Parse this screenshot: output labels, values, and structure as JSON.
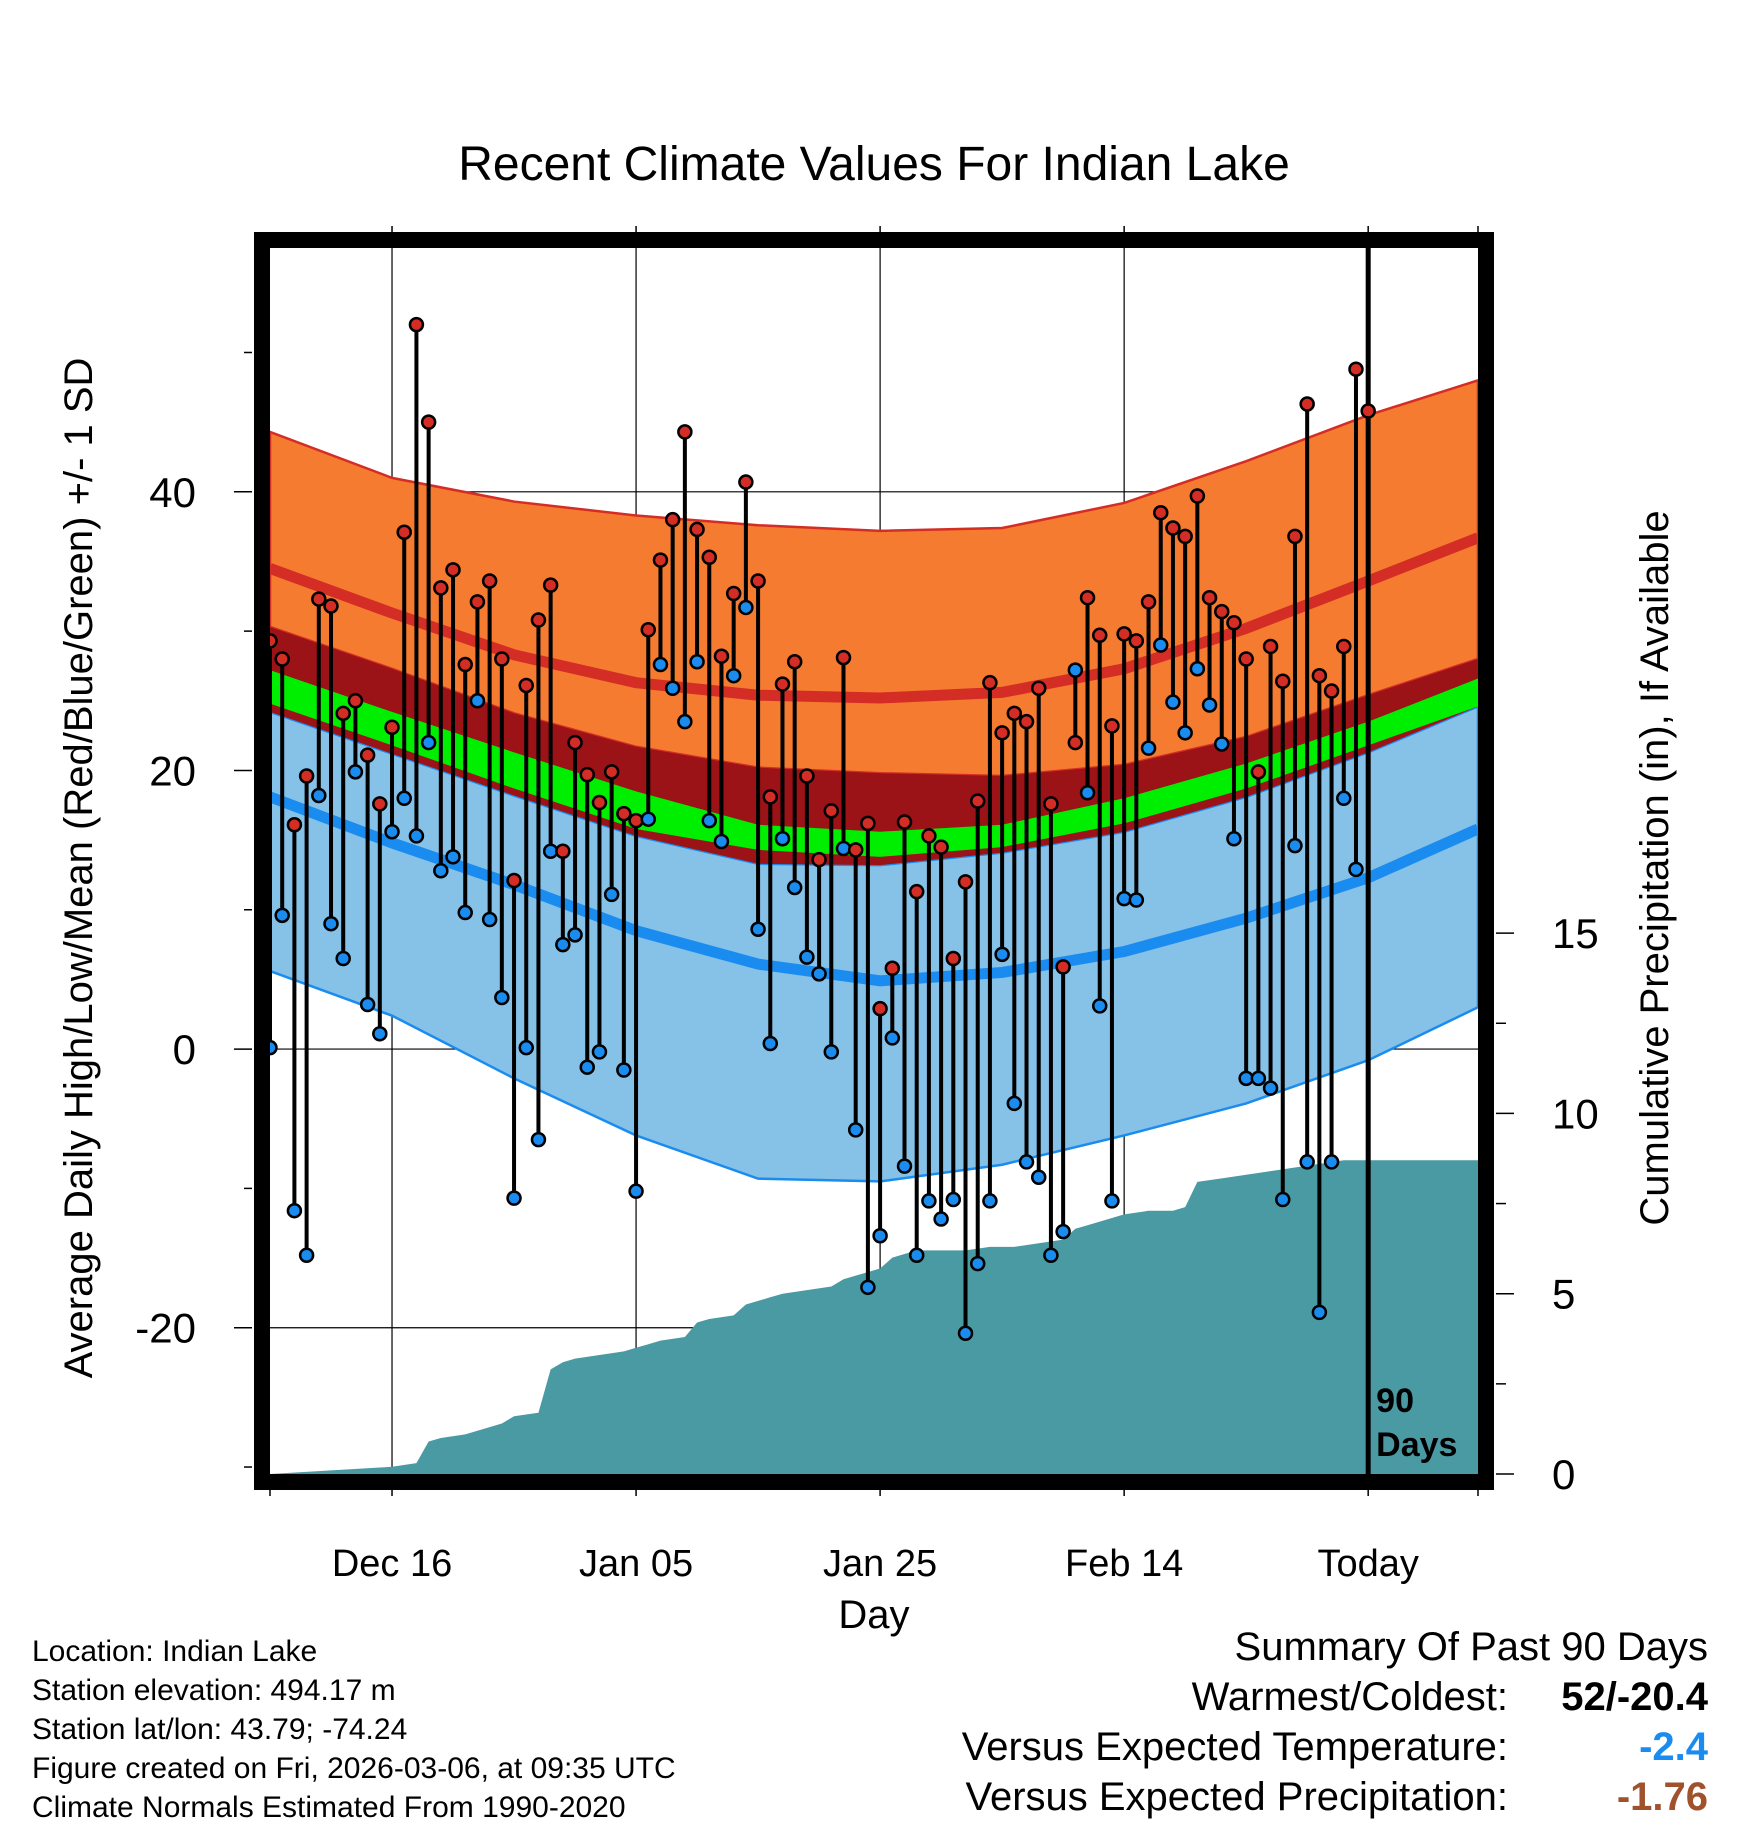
{
  "title": "Recent Climate Values For Indian Lake",
  "colors": {
    "high_band": "#f47b30",
    "high_line": "#d42d25",
    "mean_band": "#9b1217",
    "mean_line": "#00ee00",
    "low_band": "#86c1e7",
    "low_line": "#1a8cf0",
    "precip": "#4a9aa3",
    "high_dot": "#d42d25",
    "low_dot": "#1a8cf0",
    "summary_temp": "#1a8cf0",
    "summary_precip": "#a0522d"
  },
  "chart_data": {
    "type": "line",
    "title": "Recent Climate Values For Indian Lake",
    "xlabel": "Day",
    "ylabel": "Average Daily High/Low/Mean (Red/Blue/Green) +/- 1 SD",
    "y2label": "Cumulative Precipitation (in), If Available",
    "xlim": [
      -90,
      9
    ],
    "ylim": [
      -30.5,
      57.5
    ],
    "y2lim": [
      0,
      34
    ],
    "x_ticks": [
      {
        "x": -80,
        "label": "Dec 16"
      },
      {
        "x": -60,
        "label": "Jan 05"
      },
      {
        "x": -40,
        "label": "Jan 25"
      },
      {
        "x": -20,
        "label": "Feb 14"
      },
      {
        "x": 0,
        "label": "Today"
      }
    ],
    "y_ticks": [
      -20,
      0,
      20,
      40
    ],
    "y2_ticks": [
      0,
      5,
      10,
      15
    ],
    "today_marker": {
      "x": 0,
      "label_line1": "90",
      "label_line2": "Days"
    },
    "normals": {
      "x": [
        -90,
        -80,
        -70,
        -60,
        -50,
        -40,
        -30,
        -20,
        -10,
        0,
        9
      ],
      "high_upper": [
        44.3,
        41,
        39.3,
        38.3,
        37.6,
        37.2,
        37.4,
        39.2,
        42.2,
        45.5,
        48
      ],
      "high_mean": [
        34.5,
        31.3,
        28.3,
        26.3,
        25.4,
        25.2,
        25.6,
        27.3,
        30.2,
        33.6,
        36.7
      ],
      "high_lower": [
        30.3,
        27.3,
        24.1,
        21.7,
        20.2,
        19.8,
        19.6,
        20.4,
        22.4,
        25.4,
        28
      ],
      "mean_upper": [
        27.2,
        24.2,
        21.3,
        18.5,
        16.1,
        15.6,
        16.1,
        18,
        20.5,
        23.5,
        26.6
      ],
      "mean_mean": [
        26,
        23,
        20,
        17,
        15.3,
        14.8,
        15.3,
        17.1,
        19.6,
        22.7,
        25.7
      ],
      "mean_lower": [
        24.8,
        21.8,
        18.7,
        15.8,
        14.3,
        13.8,
        14.5,
        16.2,
        18.7,
        21.8,
        24.6
      ],
      "low_upper": [
        24.2,
        21.2,
        18.2,
        15.3,
        13.3,
        13.2,
        14.1,
        15.6,
        18.1,
        21.3,
        24.6
      ],
      "low_mean": [
        18.1,
        14.8,
        11.8,
        8.5,
        6.1,
        4.9,
        5.5,
        7,
        9.4,
        12.3,
        15.8
      ],
      "low_lower": [
        5.6,
        2.4,
        -2.1,
        -6.2,
        -9.3,
        -9.5,
        -8.3,
        -6.2,
        -3.9,
        -0.8,
        3
      ]
    },
    "observed": {
      "highs": [
        29.3,
        28,
        16.1,
        19.6,
        32.3,
        31.8,
        24.1,
        25,
        21.1,
        17.6,
        23.1,
        37.1,
        52,
        45,
        33.1,
        34.4,
        27.6,
        32.1,
        33.6,
        28,
        12.1,
        26.1,
        30.8,
        33.3,
        14.2,
        22,
        19.7,
        17.7,
        19.9,
        16.9,
        16.4,
        30.1,
        35.1,
        38,
        44.3,
        37.3,
        35.3,
        28.2,
        32.7,
        40.7,
        33.6,
        18.1,
        26.2,
        27.8,
        19.6,
        13.6,
        17.1,
        28.1,
        14.3,
        16.2,
        2.9,
        5.8,
        16.3,
        11.3,
        15.3,
        14.5,
        6.5,
        12,
        17.8,
        26.3,
        22.7,
        24.1,
        23.5,
        25.9,
        17.6,
        5.9,
        22,
        32.4,
        29.7,
        23.2,
        29.8,
        29.3,
        32.1,
        38.5,
        37.4,
        36.8,
        39.7,
        32.4,
        31.4,
        30.6,
        28,
        19.9,
        28.9,
        26.4,
        36.8,
        46.3,
        26.8,
        25.7,
        28.9,
        48.8,
        45.8
      ],
      "lows": [
        0.1,
        9.6,
        -11.6,
        -14.8,
        18.2,
        9,
        6.5,
        19.9,
        3.2,
        1.1,
        15.6,
        18,
        15.3,
        22,
        12.8,
        13.8,
        9.8,
        25,
        9.3,
        3.7,
        -10.7,
        0.1,
        -6.5,
        14.2,
        7.5,
        8.2,
        -1.3,
        -0.2,
        11.1,
        -1.5,
        -10.2,
        16.5,
        27.6,
        25.9,
        23.5,
        27.8,
        16.4,
        14.9,
        26.8,
        31.7,
        8.6,
        0.4,
        15.1,
        11.6,
        6.6,
        5.4,
        -0.2,
        14.4,
        -5.8,
        -17.1,
        -13.4,
        0.8,
        -8.4,
        -14.8,
        -10.9,
        -12.2,
        -10.8,
        -20.4,
        -15.4,
        -10.9,
        6.8,
        -3.9,
        -8.1,
        -9.2,
        -14.8,
        -13.1,
        27.2,
        18.4,
        3.1,
        -10.9,
        10.8,
        10.7,
        21.6,
        29,
        24.9,
        22.7,
        27.3,
        24.7,
        21.9,
        15.1,
        -2.1,
        -2.1,
        -2.8,
        -10.8,
        14.6,
        -8.1,
        -18.9,
        -8.1,
        18,
        12.9
      ]
    },
    "precip_cumulative": {
      "x": [
        -90,
        -85,
        -80,
        -78,
        -77,
        -76,
        -74,
        -72,
        -71,
        -70,
        -68,
        -67,
        -66,
        -65,
        -63,
        -61,
        -60,
        -59,
        -58,
        -56,
        -55,
        -54,
        -52,
        -51,
        -50,
        -49,
        -48,
        -46,
        -44,
        -43,
        -42,
        -41,
        -40,
        -39,
        -38,
        -37,
        -35,
        -33,
        -31,
        -29,
        -27,
        -25,
        -24,
        -23,
        -22,
        -20,
        -18,
        -16,
        -15,
        -14,
        -12,
        -10,
        -8,
        -6,
        -4,
        -2,
        0,
        9
      ],
      "values": [
        0,
        0.1,
        0.2,
        0.3,
        0.9,
        1,
        1.1,
        1.3,
        1.4,
        1.6,
        1.7,
        2.9,
        3.1,
        3.2,
        3.3,
        3.4,
        3.5,
        3.6,
        3.7,
        3.8,
        4.2,
        4.3,
        4.4,
        4.7,
        4.8,
        4.9,
        5,
        5.1,
        5.2,
        5.4,
        5.5,
        5.6,
        5.7,
        6,
        6.1,
        6.2,
        6.2,
        6.2,
        6.3,
        6.3,
        6.4,
        6.5,
        6.8,
        6.9,
        7,
        7.2,
        7.3,
        7.3,
        7.4,
        8.1,
        8.2,
        8.3,
        8.4,
        8.5,
        8.6,
        8.7,
        8.7,
        8.7
      ]
    }
  },
  "info": {
    "location": "Location: Indian Lake",
    "elevation": "Station elevation: 494.17 m",
    "latlon": "Station lat/lon: 43.79; -74.24",
    "created": "Figure created on Fri, 2026-03-06, at 09:35 UTC",
    "normals": "Climate Normals Estimated From 1990-2020"
  },
  "summary": {
    "title": "Summary Of Past 90 Days",
    "warmest_coldest_label": "Warmest/Coldest:",
    "warmest_coldest_value": "52/-20.4",
    "temp_label": "Versus Expected Temperature:",
    "temp_value": "-2.4",
    "precip_label": "Versus Expected Precipitation:",
    "precip_value": "-1.76"
  }
}
